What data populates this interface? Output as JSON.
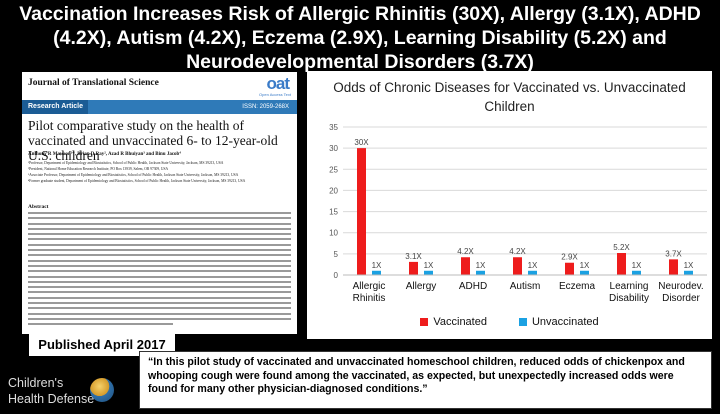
{
  "headline": {
    "line1": "Vaccination Increases Risk of Allergic Rhinitis (30X), Allergy (3.1X), ADHD",
    "line2": "(4.2X), Autism (4.2X), Eczema (2.9X), Learning Disability (5.2X) and",
    "line3": "Neurodevelopmental Disorders (3.7X)"
  },
  "paper": {
    "journal": "Journal of Translational Science",
    "publisher_logo": "oat",
    "publisher_sub": "Open Access Text",
    "article_type": "Research Article",
    "issn": "ISSN: 2059-268X",
    "title": "Pilot comparative study on the health of vaccinated and unvaccinated 6- to 12-year-old U.S. children",
    "authors": "Anthony R Mawson¹*, Brian D Ray², Azad R Bhuiyan³ and Binu Jacob⁴",
    "affiliations": [
      "¹Professor, Department of Epidemiology and Biostatistics, School of Public Health, Jackson State University, Jackson, MS 39213, USA",
      "²President, National Home Education Research Institute, PO Box 13939, Salem, OR 97309, USA",
      "³Associate Professor, Department of Epidemiology and Biostatistics, School of Public Health, Jackson State University, Jackson, MS 39213, USA",
      "⁴Former graduate student, Department of Epidemiology and Biostatistics, School of Public Health, Jackson State University, Jackson, MS 39213, USA"
    ],
    "abstract_heading": "Abstract"
  },
  "published": "Published April 2017",
  "chart_data": {
    "type": "bar",
    "title": "Odds of Chronic Diseases for Vaccinated vs. Unvaccinated Children",
    "categories": [
      "Allergic Rhinitis",
      "Allergy",
      "ADHD",
      "Autism",
      "Eczema",
      "Learning Disability",
      "Neurodev. Disorder"
    ],
    "series": [
      {
        "name": "Vaccinated",
        "color": "#ee1c1c",
        "values": [
          30,
          3.1,
          4.2,
          4.2,
          2.9,
          5.2,
          3.7
        ],
        "labels": [
          "30X",
          "3.1X",
          "4.2X",
          "4.2X",
          "2.9X",
          "5.2X",
          "3.7X"
        ]
      },
      {
        "name": "Unvaccinated",
        "color": "#1ba1e2",
        "values": [
          1,
          1,
          1,
          1,
          1,
          1,
          1
        ],
        "labels": [
          "1X",
          "1X",
          "1X",
          "1X",
          "1X",
          "1X",
          "1X"
        ]
      }
    ],
    "ylim": [
      0,
      35
    ],
    "yticks": [
      0,
      5,
      10,
      15,
      20,
      25,
      30,
      35
    ],
    "grid": true,
    "legend": "bottom"
  },
  "quote": "“In this pilot study of vaccinated and unvaccinated homeschool children, reduced odds of chickenpox and whooping cough were found among the vaccinated, as expected, but unexpectedly increased odds were found for many other physician-diagnosed  conditions.”",
  "logo": {
    "line1": "Children's",
    "line2": "Health Defense"
  }
}
